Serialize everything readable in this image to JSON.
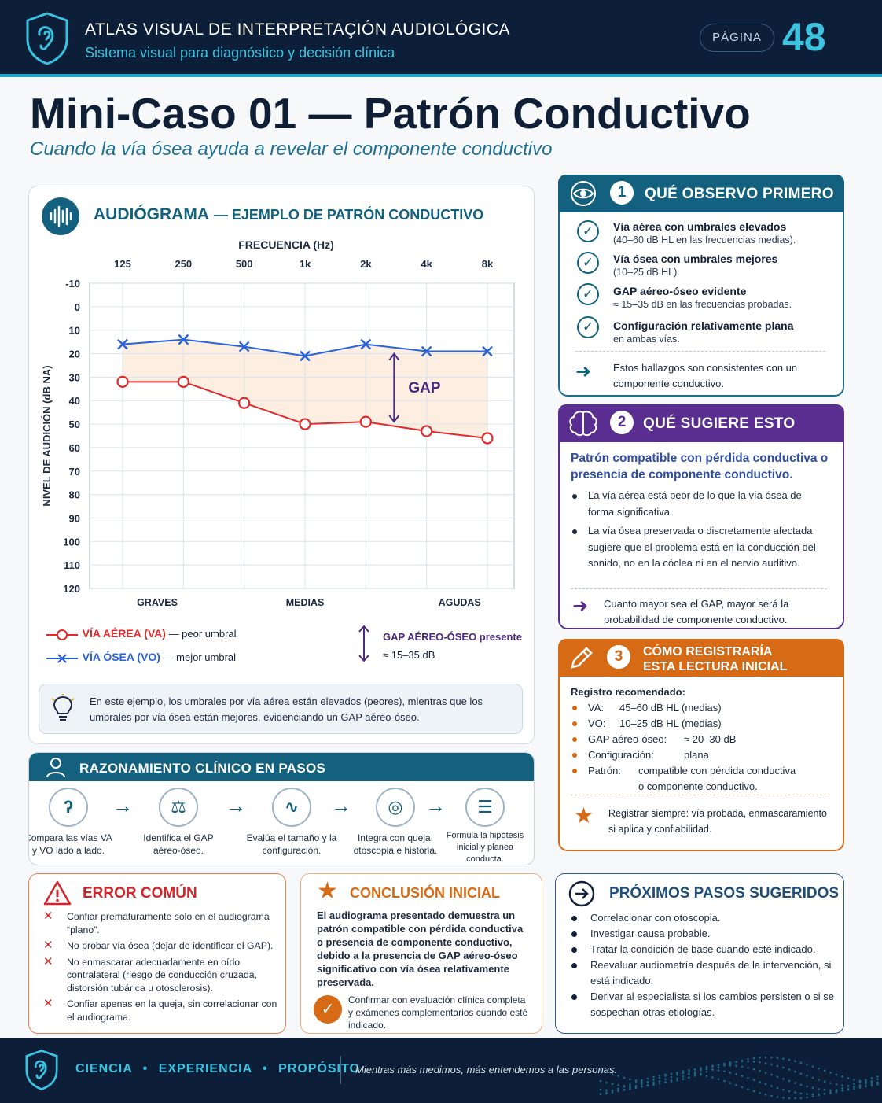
{
  "header": {
    "title": "ATLAS VISUAL DE INTERPRETAÇIÓN AUDIOLÓGICA",
    "subtitle": "Sistema visual para diagnóstico y decisión clínica",
    "page_label": "PÁGINA",
    "page_number": "48"
  },
  "main": {
    "title": "Mini-Caso 01 — Patrón Conductivo",
    "subtitle": "Cuando la vía ósea ayuda a revelar el componente conductivo"
  },
  "audiogram": {
    "title": "AUDIÓGRAMA",
    "title_suffix": "— EJEMPLO DE PATRÓN CONDUCTIVO",
    "legend": {
      "va_label": "VÍA AÉREA (VA)",
      "va_note": "— peor umbral",
      "vo_label": "VÍA ÓSEA (VO)",
      "vo_note": "— mejor umbral",
      "gap_label": "GAP AÉREO-ÓSEO presente",
      "gap_range": "≈ 15–35 dB"
    },
    "tip": "En este ejemplo, los umbrales por vía aérea están elevados (peores), mientras que los umbrales por vía ósea están mejores, evidenciando un GAP aéreo-óseo."
  },
  "chart_data": {
    "type": "line",
    "title": "",
    "xlabel": "FRECUENCIA (Hz)",
    "ylabel": "NIVEL DE AUDICIÓN (dB NA)",
    "x": [
      "125",
      "250",
      "500",
      "1k",
      "2k",
      "4k",
      "8k"
    ],
    "ylim": [
      -10,
      120
    ],
    "y_inverted": true,
    "yticks": [
      -10,
      0,
      10,
      20,
      30,
      40,
      50,
      60,
      70,
      80,
      90,
      100,
      110,
      120
    ],
    "region_labels": [
      "GRAVES",
      "MEDIAS",
      "AGUDAS"
    ],
    "gap_annotation": "GAP",
    "grid": true,
    "series": [
      {
        "name": "VÍA AÉREA (VA)",
        "marker": "O",
        "color": "#e02b2b",
        "values": [
          32,
          32,
          41,
          50,
          49,
          53,
          56
        ]
      },
      {
        "name": "VÍA ÓSEA (VO)",
        "marker": "X",
        "color": "#2a62d8",
        "values": [
          16,
          14,
          17,
          21,
          16,
          19,
          19
        ]
      }
    ]
  },
  "observe": {
    "number": "1",
    "title": "QUÉ OBSERVO PRIMERO",
    "items": [
      {
        "bold": "Vía aérea con umbrales elevados",
        "sub": "(40–60 dB HL en las frecuencias medias)."
      },
      {
        "bold": "Vía ósea con umbrales mejores",
        "sub": "(10–25 dB HL)."
      },
      {
        "bold": "GAP aéreo-óseo evidente",
        "sub": "≈ 15–35 dB en las frecuencias probadas."
      },
      {
        "bold": "Configuración relativamente plana",
        "sub": "en ambas vías."
      }
    ],
    "conclusion": "Estos hallazgos son consistentes con un componente conductivo."
  },
  "suggest": {
    "number": "2",
    "title": "QUÉ SUGIERE ESTO",
    "lead": "Patrón compatible con pérdida conductiva o presencia de componente conductivo.",
    "bullets": [
      "La vía aérea está peor de lo que la vía ósea de forma significativa.",
      "La vía ósea preservada o discretamente afectada sugiere que el problema está en la conducción del sonido, no en la cóclea ni en el nervio auditivo."
    ],
    "note": "Cuanto mayor sea el GAP, mayor será la probabilidad de componente conductivo."
  },
  "register": {
    "number": "3",
    "title_line1": "CÓMO REGISTRARÍA",
    "title_line2": "ESTA LECTURA INICIAL",
    "heading": "Registro recomendado:",
    "rows": [
      {
        "k": "VA:",
        "v": "45–60 dB HL (medias)"
      },
      {
        "k": "VO:",
        "v": "10–25 dB HL (medias)"
      },
      {
        "k": "GAP aéreo-óseo:",
        "v": "≈ 20–30 dB"
      },
      {
        "k": "Configuración:",
        "v": "plana"
      },
      {
        "k": "Patrón:",
        "v": "compatible con pérdida conductiva",
        "v2": "o componente conductivo."
      }
    ],
    "note": "Registrar siempre: vía probada, enmascaramiento si aplica y confiabilidad."
  },
  "reasoning": {
    "title": "RAZONAMIENTO CLÍNICO EN PASOS",
    "steps": [
      "Compara las vías VA y VO lado a lado.",
      "Identifica el GAP aéreo-óseo.",
      "Evalúa el tamaño y la configuración.",
      "Integra con queja, otoscopia e historia.",
      "Formula la hipótesis inicial y planea conducta."
    ]
  },
  "error": {
    "title": "ERROR COMÚN",
    "items": [
      "Confiar prematuramente solo en el audiograma “plano”.",
      "No probar vía ósea (dejar de identificar el GAP).",
      "No enmascarar adecuadamente en oído contralateral (riesgo de conducción cruzada, distorsión tubárica u otosclerosis).",
      "Confiar apenas en la queja, sin correlacionar con el audiograma."
    ]
  },
  "conclusion": {
    "title": "CONCLUSIÓN INICIAL",
    "text": "El audiograma presentado demuestra un patrón compatible con pérdida conductiva o presencia de componente conductivo, debido a la presencia de GAP aéreo-óseo significativo con vía ósea relativamente preservada.",
    "note": "Confirmar con evaluación clínica completa y exámenes complementarios cuando esté indicado."
  },
  "next": {
    "title": "PRÓXIMOS PASOS SUGERIDOS",
    "items": [
      "Correlacionar con otoscopia.",
      "Investigar causa probable.",
      "Tratar la condición de base cuando esté indicado.",
      "Reevaluar audiometría después de la intervención, si está indicado.",
      "Derivar al especialista si los cambios persisten o si se sospechan otras etiologías."
    ]
  },
  "footer": {
    "w1": "CIENCIA",
    "w2": "EXPERIENCIA",
    "w3": "PROPÓSITO",
    "quote": "Mientras más medimos, más entendemos a las personas."
  },
  "colors": {
    "navy": "#0d1f38",
    "teal": "#13617f",
    "cyan": "#39c3e0",
    "purple": "#5a2e91",
    "orange": "#d76a14",
    "red": "#e02b2b",
    "blue": "#2a62d8"
  },
  "icons": {
    "header": "ear-shield-icon",
    "audiogram": "sound-wave-icon",
    "observe": "eye-icon",
    "suggest": "brain-icon",
    "register": "pencil-icon",
    "reasoning": "doctor-icon",
    "error": "warning-icon",
    "conclusion": "star-icon",
    "next": "arrow-circle-icon",
    "tip": "lightbulb-icon"
  }
}
